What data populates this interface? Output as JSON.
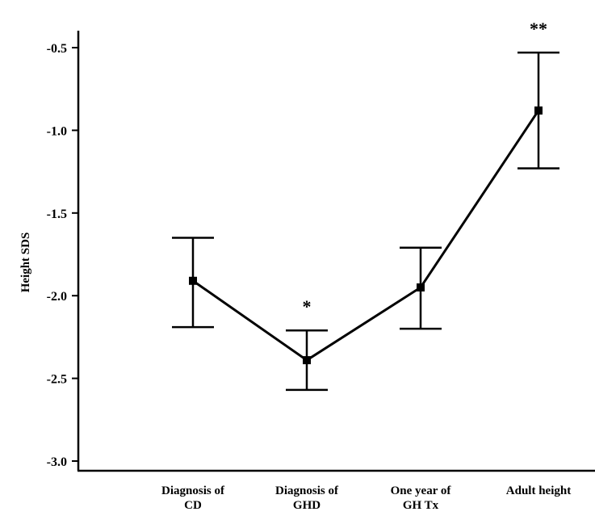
{
  "chart_data": {
    "type": "line",
    "title": "",
    "xlabel": "",
    "ylabel": "Height SDS",
    "ylim": [
      -3.05,
      -0.4
    ],
    "yticks": [
      -0.5,
      -1.0,
      -1.5,
      -2.0,
      -2.5,
      -3.0
    ],
    "ytick_labels": [
      "-0.5",
      "-1.0",
      "-1.5",
      "-2.0",
      "-2.5",
      "-3.0"
    ],
    "categories": [
      [
        "Diagnosis of",
        "CD"
      ],
      [
        "Diagnosis of",
        "GHD"
      ],
      [
        "One year of",
        "GH Tx"
      ],
      [
        "Adult height"
      ]
    ],
    "series": [
      {
        "values": [
          -1.91,
          -2.39,
          -1.95,
          -0.88
        ],
        "error_upper": [
          -1.65,
          -2.21,
          -1.71,
          -0.53
        ],
        "error_lower": [
          -2.19,
          -2.57,
          -2.2,
          -1.23
        ],
        "color": "#000000"
      }
    ],
    "annotations": [
      "",
      "*",
      "",
      "**"
    ],
    "grid": false,
    "legend": "none"
  }
}
